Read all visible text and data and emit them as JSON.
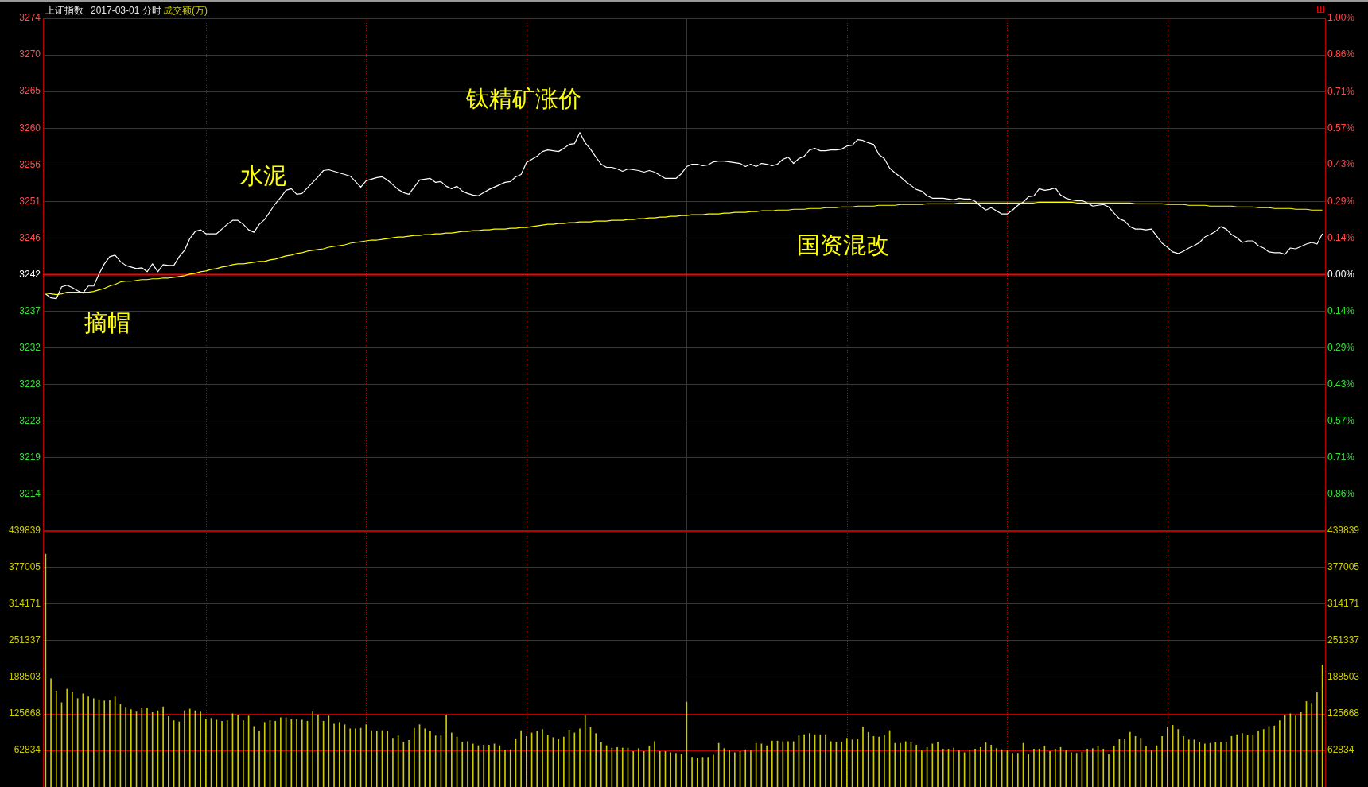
{
  "chart_data": [
    {
      "type": "line",
      "title": "上证指数",
      "subtitle": "2017-03-01 分时",
      "annotations": [
        "摘帽",
        "水泥",
        "钛精矿涨价",
        "国资混改"
      ],
      "categories": [
        null,
        null,
        null,
        null,
        null,
        null,
        null,
        null,
        null,
        null,
        null,
        null,
        null,
        null,
        null,
        null,
        null,
        null,
        null,
        null,
        null,
        null,
        null,
        null,
        null,
        null,
        null,
        null,
        null,
        null,
        null,
        null,
        null,
        null,
        null,
        null,
        null,
        null,
        null,
        null,
        null,
        null,
        null,
        null,
        null,
        null,
        null,
        null,
        null,
        null,
        null,
        null,
        null,
        null,
        null,
        null,
        null,
        null,
        null,
        null,
        null,
        null,
        null,
        null,
        null,
        null,
        null,
        null,
        null,
        null,
        null,
        null,
        null,
        null,
        null,
        null,
        null,
        null,
        null,
        null,
        null,
        null,
        null,
        null,
        null,
        null,
        null,
        null,
        null,
        null,
        null,
        null,
        null,
        null,
        null,
        null,
        null,
        null,
        null,
        null,
        null,
        null,
        null,
        null,
        null,
        null,
        null,
        null,
        null,
        null,
        null,
        null,
        null,
        null,
        null,
        null,
        null,
        null,
        null,
        null,
        null,
        null,
        null,
        null,
        null,
        null,
        null,
        null,
        null,
        null,
        null,
        null,
        null,
        null,
        null,
        null,
        null,
        null,
        null,
        null,
        null,
        null,
        null,
        null,
        null,
        null,
        null,
        null,
        null,
        null,
        null,
        null,
        null,
        null,
        null,
        null,
        null,
        null,
        null,
        null,
        null,
        null,
        null,
        null,
        null,
        null,
        null,
        null,
        null,
        null,
        null,
        null,
        null,
        null,
        null,
        null,
        null,
        null,
        null,
        null,
        null,
        null,
        null,
        null,
        null,
        null,
        null,
        null,
        null,
        null,
        null,
        null,
        null,
        null,
        null,
        null,
        null,
        null,
        null,
        null,
        null,
        null,
        null,
        null,
        null,
        null,
        null,
        null,
        null,
        null,
        null,
        null,
        null,
        null,
        null,
        null,
        null,
        null,
        null,
        null,
        null,
        null,
        null,
        null,
        null,
        null,
        null,
        null,
        null,
        null,
        null,
        null,
        null,
        null,
        null,
        null,
        null,
        null,
        null,
        null
      ],
      "series": [
        {
          "color": "#ffffff",
          "values": [
            3239.3,
            3238.8,
            3238.7,
            3240.2,
            3240.4,
            3240.1,
            3239.7,
            3239.4,
            3240.3,
            3240.3,
            3241.8,
            3243.1,
            3244.0,
            3244.2,
            3243.4,
            3242.9,
            3242.7,
            3242.5,
            3242.6,
            3242.1,
            3243.1,
            3242.1,
            3243.0,
            3242.9,
            3242.9,
            3244.0,
            3244.8,
            3246.3,
            3247.2,
            3247.4,
            3246.9,
            3246.9,
            3246.9,
            3247.5,
            3248.1,
            3248.6,
            3248.6,
            3248.1,
            3247.4,
            3247.1,
            3248.1,
            3248.7,
            3249.7,
            3250.7,
            3251.5,
            3252.4,
            3252.6,
            3251.9,
            3252.0,
            3252.7,
            3253.4,
            3254.1,
            3254.9,
            3255.0,
            3254.8,
            3254.6,
            3254.4,
            3254.2,
            3253.5,
            3252.8,
            3253.6,
            3253.8,
            3254.0,
            3254.1,
            3253.7,
            3253.1,
            3252.5,
            3252.1,
            3251.9,
            3252.8,
            3253.7,
            3253.8,
            3253.9,
            3253.4,
            3253.5,
            3252.9,
            3252.6,
            3252.9,
            3252.3,
            3252.0,
            3251.8,
            3251.7,
            3252.1,
            3252.5,
            3252.8,
            3253.1,
            3253.4,
            3253.5,
            3254.1,
            3254.4,
            3255.9,
            3256.3,
            3256.7,
            3257.3,
            3257.5,
            3257.4,
            3257.3,
            3257.7,
            3258.2,
            3258.3,
            3259.7,
            3258.4,
            3257.6,
            3256.6,
            3255.7,
            3255.3,
            3255.3,
            3255.1,
            3254.8,
            3255.1,
            3255.0,
            3254.9,
            3254.7,
            3254.9,
            3254.7,
            3254.3,
            3253.9,
            3253.9,
            3253.9,
            3254.5,
            3255.4,
            3255.7,
            3255.7,
            3255.5,
            3255.6,
            3256.0,
            3256.1,
            3256.1,
            3256.0,
            3255.9,
            3255.8,
            3255.4,
            3255.7,
            3255.4,
            3255.8,
            3255.7,
            3255.5,
            3255.7,
            3256.3,
            3256.6,
            3255.8,
            3256.4,
            3256.7,
            3257.5,
            3257.7,
            3257.4,
            3257.4,
            3257.5,
            3257.5,
            3257.6,
            3258.0,
            3258.1,
            3258.8,
            3258.7,
            3258.4,
            3258.2,
            3256.9,
            3256.4,
            3255.2,
            3254.6,
            3254.1,
            3253.5,
            3253.0,
            3252.5,
            3252.3,
            3251.7,
            3251.4,
            3251.4,
            3251.4,
            3251.3,
            3251.2,
            3251.4,
            3251.3,
            3251.3,
            3251.0,
            3250.4,
            3249.9,
            3250.2,
            3249.8,
            3249.4,
            3249.4,
            3249.9,
            3250.5,
            3250.9,
            3251.6,
            3251.7,
            3252.6,
            3252.4,
            3252.5,
            3252.7,
            3251.8,
            3251.4,
            3251.2,
            3251.1,
            3251.1,
            3250.8,
            3250.4,
            3250.5,
            3250.6,
            3250.3,
            3249.5,
            3248.8,
            3248.5,
            3247.8,
            3247.5,
            3247.5,
            3247.4,
            3247.5,
            3246.6,
            3245.7,
            3245.2,
            3244.6,
            3244.4,
            3244.7,
            3245.1,
            3245.4,
            3245.8,
            3246.5,
            3246.8,
            3247.2,
            3247.8,
            3247.5,
            3246.8,
            3246.4,
            3245.8,
            3246.0,
            3246.0,
            3245.4,
            3245.1,
            3244.6,
            3244.5,
            3244.5,
            3244.3,
            3245.1,
            3245.0,
            3245.3,
            3245.6,
            3245.8,
            3245.6,
            3246.9
          ]
        },
        {
          "color": "#ffff00",
          "values": [
            3239.4,
            3239.3,
            3239.2,
            3239.3,
            3239.5,
            3239.5,
            3239.5,
            3239.5,
            3239.5,
            3239.6,
            3239.8,
            3240.0,
            3240.3,
            3240.5,
            3240.8,
            3240.9,
            3240.9,
            3241.0,
            3241.1,
            3241.1,
            3241.2,
            3241.2,
            3241.3,
            3241.3,
            3241.4,
            3241.5,
            3241.6,
            3241.8,
            3241.9,
            3242.1,
            3242.2,
            3242.4,
            3242.5,
            3242.7,
            3242.8,
            3243.0,
            3243.1,
            3243.1,
            3243.2,
            3243.3,
            3243.4,
            3243.4,
            3243.6,
            3243.7,
            3243.9,
            3244.1,
            3244.2,
            3244.4,
            3244.5,
            3244.7,
            3244.8,
            3244.9,
            3245.0,
            3245.2,
            3245.3,
            3245.4,
            3245.5,
            3245.7,
            3245.8,
            3245.9,
            3246.0,
            3246.1,
            3246.1,
            3246.2,
            3246.3,
            3246.4,
            3246.5,
            3246.5,
            3246.6,
            3246.7,
            3246.7,
            3246.8,
            3246.8,
            3246.9,
            3246.9,
            3247.0,
            3247.0,
            3247.1,
            3247.2,
            3247.2,
            3247.3,
            3247.3,
            3247.4,
            3247.4,
            3247.5,
            3247.5,
            3247.5,
            3247.6,
            3247.6,
            3247.7,
            3247.7,
            3247.8,
            3247.9,
            3248.0,
            3248.1,
            3248.1,
            3248.2,
            3248.2,
            3248.3,
            3248.3,
            3248.4,
            3248.4,
            3248.4,
            3248.5,
            3248.5,
            3248.5,
            3248.6,
            3248.6,
            3248.6,
            3248.7,
            3248.7,
            3248.8,
            3248.8,
            3248.9,
            3248.9,
            3249.0,
            3249.0,
            3249.1,
            3249.1,
            3249.2,
            3249.2,
            3249.3,
            3249.3,
            3249.3,
            3249.4,
            3249.4,
            3249.4,
            3249.5,
            3249.5,
            3249.6,
            3249.6,
            3249.6,
            3249.7,
            3249.7,
            3249.8,
            3249.8,
            3249.8,
            3249.9,
            3249.9,
            3249.9,
            3250.0,
            3250.0,
            3250.0,
            3250.1,
            3250.1,
            3250.1,
            3250.2,
            3250.2,
            3250.2,
            3250.3,
            3250.3,
            3250.3,
            3250.4,
            3250.4,
            3250.4,
            3250.4,
            3250.5,
            3250.5,
            3250.5,
            3250.5,
            3250.6,
            3250.6,
            3250.6,
            3250.6,
            3250.6,
            3250.7,
            3250.7,
            3250.7,
            3250.7,
            3250.7,
            3250.7,
            3250.8,
            3250.8,
            3250.8,
            3250.8,
            3250.8,
            3250.8,
            3250.8,
            3250.8,
            3250.8,
            3250.8,
            3250.8,
            3250.8,
            3250.8,
            3250.8,
            3250.8,
            3250.9,
            3250.9,
            3250.9,
            3250.9,
            3250.9,
            3250.9,
            3250.9,
            3250.8,
            3250.8,
            3250.8,
            3250.8,
            3250.8,
            3250.8,
            3250.8,
            3250.8,
            3250.8,
            3250.8,
            3250.8,
            3250.7,
            3250.7,
            3250.7,
            3250.7,
            3250.7,
            3250.7,
            3250.6,
            3250.6,
            3250.6,
            3250.6,
            3250.5,
            3250.5,
            3250.5,
            3250.5,
            3250.4,
            3250.4,
            3250.4,
            3250.4,
            3250.4,
            3250.3,
            3250.3,
            3250.3,
            3250.3,
            3250.2,
            3250.2,
            3250.2,
            3250.1,
            3250.1,
            3250.1,
            3250.1,
            3250.0,
            3250.0,
            3250.0,
            3249.9,
            3249.9,
            3249.9
          ]
        }
      ],
      "ylim": [
        3209.31,
        3274.15
      ],
      "yticks": [
        {
          "value": 3274.15,
          "label": "3274"
        },
        {
          "value": 3269.52,
          "label": "3270"
        },
        {
          "value": 3264.89,
          "label": "3265"
        },
        {
          "value": 3260.25,
          "label": "3260"
        },
        {
          "value": 3255.62,
          "label": "3256"
        },
        {
          "value": 3250.99,
          "label": "3251"
        },
        {
          "value": 3246.36,
          "label": "3246"
        },
        {
          "value": 3241.73,
          "label": "3242"
        },
        {
          "value": 3237.1,
          "label": "3237"
        },
        {
          "value": 3232.47,
          "label": "3232"
        },
        {
          "value": 3227.84,
          "label": "3228"
        },
        {
          "value": 3223.21,
          "label": "3223"
        },
        {
          "value": 3218.58,
          "label": "3219"
        },
        {
          "value": 3213.94,
          "label": "3214"
        }
      ],
      "y2lim": [
        -1,
        1
      ],
      "y2ticks": [
        {
          "value": 1,
          "label": "1.00%"
        },
        {
          "value": 0.857,
          "label": "0.86%"
        },
        {
          "value": 0.714,
          "label": "0.71%"
        },
        {
          "value": 0.571,
          "label": "0.57%"
        },
        {
          "value": 0.429,
          "label": "0.43%"
        },
        {
          "value": 0.286,
          "label": "0.29%"
        },
        {
          "value": 0.143,
          "label": "0.14%"
        },
        {
          "value": 0,
          "label": "0.00%"
        },
        {
          "value": -0.143,
          "label": "0.14%"
        },
        {
          "value": -0.286,
          "label": "0.29%"
        },
        {
          "value": -0.429,
          "label": "0.43%"
        },
        {
          "value": -0.571,
          "label": "0.57%"
        },
        {
          "value": -0.714,
          "label": "0.71%"
        },
        {
          "value": -0.857,
          "label": "0.86%"
        }
      ],
      "ref_lines": [
        {
          "axis": "y",
          "value": 3241.73,
          "color": "#ff0000"
        }
      ],
      "grid": true
    },
    {
      "type": "bar",
      "categories": [
        null,
        null,
        null,
        null,
        null,
        null,
        null,
        null,
        null,
        null,
        null,
        null,
        null,
        null,
        null,
        null,
        null,
        null,
        null,
        null,
        null,
        null,
        null,
        null,
        null,
        null,
        null,
        null,
        null,
        null,
        null,
        null,
        null,
        null,
        null,
        null,
        null,
        null,
        null,
        null,
        null,
        null,
        null,
        null,
        null,
        null,
        null,
        null,
        null,
        null,
        null,
        null,
        null,
        null,
        null,
        null,
        null,
        null,
        null,
        null,
        null,
        null,
        null,
        null,
        null,
        null,
        null,
        null,
        null,
        null,
        null,
        null,
        null,
        null,
        null,
        null,
        null,
        null,
        null,
        null,
        null,
        null,
        null,
        null,
        null,
        null,
        null,
        null,
        null,
        null,
        null,
        null,
        null,
        null,
        null,
        null,
        null,
        null,
        null,
        null,
        null,
        null,
        null,
        null,
        null,
        null,
        null,
        null,
        null,
        null,
        null,
        null,
        null,
        null,
        null,
        null,
        null,
        null,
        null,
        null,
        null,
        null,
        null,
        null,
        null,
        null,
        null,
        null,
        null,
        null,
        null,
        null,
        null,
        null,
        null,
        null,
        null,
        null,
        null,
        null,
        null,
        null,
        null,
        null,
        null,
        null,
        null,
        null,
        null,
        null,
        null,
        null,
        null,
        null,
        null,
        null,
        null,
        null,
        null,
        null,
        null,
        null,
        null,
        null,
        null,
        null,
        null,
        null,
        null,
        null,
        null,
        null,
        null,
        null,
        null,
        null,
        null,
        null,
        null,
        null,
        null,
        null,
        null,
        null,
        null,
        null,
        null,
        null,
        null,
        null,
        null,
        null,
        null,
        null,
        null,
        null,
        null,
        null,
        null,
        null,
        null,
        null,
        null,
        null,
        null,
        null,
        null,
        null,
        null,
        null,
        null,
        null,
        null,
        null,
        null,
        null,
        null,
        null,
        null,
        null,
        null,
        null,
        null,
        null,
        null,
        null,
        null,
        null,
        null,
        null,
        null,
        null,
        null,
        null,
        null,
        null,
        null,
        null,
        null,
        null
      ],
      "series": [
        {
          "name": "成交额(万)",
          "color": "#cccc00",
          "values": [
            400000,
            186000,
            165000,
            145000,
            168000,
            163000,
            152000,
            160000,
            155000,
            152000,
            150000,
            148000,
            149000,
            155000,
            143000,
            137000,
            133000,
            129000,
            136000,
            136000,
            128000,
            131000,
            138000,
            121000,
            114000,
            112000,
            131000,
            134000,
            131000,
            129000,
            117000,
            118000,
            115000,
            113000,
            114000,
            126000,
            124000,
            114000,
            122000,
            104000,
            96000,
            111000,
            114000,
            113000,
            119000,
            119000,
            116000,
            116000,
            115000,
            113000,
            129000,
            124000,
            113000,
            122000,
            108000,
            111000,
            107000,
            100000,
            100000,
            101000,
            107000,
            97000,
            96000,
            97000,
            96000,
            84000,
            88000,
            77000,
            80000,
            101000,
            107000,
            100000,
            95000,
            88000,
            88000,
            124000,
            93000,
            86000,
            77000,
            78000,
            74000,
            71000,
            72000,
            72000,
            74000,
            71000,
            63000,
            64000,
            83000,
            97000,
            87000,
            93000,
            96000,
            99000,
            89000,
            85000,
            82000,
            86000,
            98000,
            93000,
            100000,
            123000,
            102000,
            92000,
            76000,
            71000,
            67000,
            68000,
            67000,
            67000,
            61000,
            66000,
            61000,
            70000,
            78000,
            61000,
            61000,
            59000,
            58000,
            56000,
            146000,
            51000,
            50000,
            51000,
            51000,
            55000,
            75000,
            66000,
            62000,
            59000,
            61000,
            64000,
            62000,
            75000,
            74000,
            71000,
            79000,
            79000,
            78000,
            78000,
            78000,
            88000,
            90000,
            92000,
            90000,
            90000,
            90000,
            78000,
            77000,
            77000,
            84000,
            81000,
            82000,
            103000,
            94000,
            87000,
            86000,
            89000,
            97000,
            75000,
            75000,
            78000,
            76000,
            72000,
            62000,
            68000,
            74000,
            77000,
            65000,
            65000,
            67000,
            62000,
            59000,
            63000,
            65000,
            68000,
            76000,
            72000,
            66000,
            64000,
            62000,
            58000,
            58000,
            75000,
            56000,
            65000,
            65000,
            70000,
            61000,
            65000,
            68000,
            62000,
            59000,
            58000,
            60000,
            65000,
            66000,
            70000,
            65000,
            56000,
            70000,
            82000,
            83000,
            94000,
            87000,
            84000,
            70000,
            62000,
            71000,
            87000,
            103000,
            106000,
            99000,
            87000,
            81000,
            81000,
            76000,
            74000,
            75000,
            77000,
            77000,
            77000,
            87000,
            90000,
            92000,
            89000,
            89000,
            96000,
            99000,
            104000,
            105000,
            114000,
            123000,
            126000,
            122000,
            128000,
            147000,
            144000,
            162000,
            210000
          ]
        }
      ],
      "ylim": [
        0,
        439839
      ],
      "yticks": [
        62834,
        125668,
        188503,
        251337,
        314171,
        377005,
        439839
      ],
      "y2lim": [
        0,
        439839
      ],
      "y2ticks": [
        62834,
        125668,
        188503,
        251337,
        314171,
        377005,
        439839
      ],
      "grid": true
    }
  ]
}
